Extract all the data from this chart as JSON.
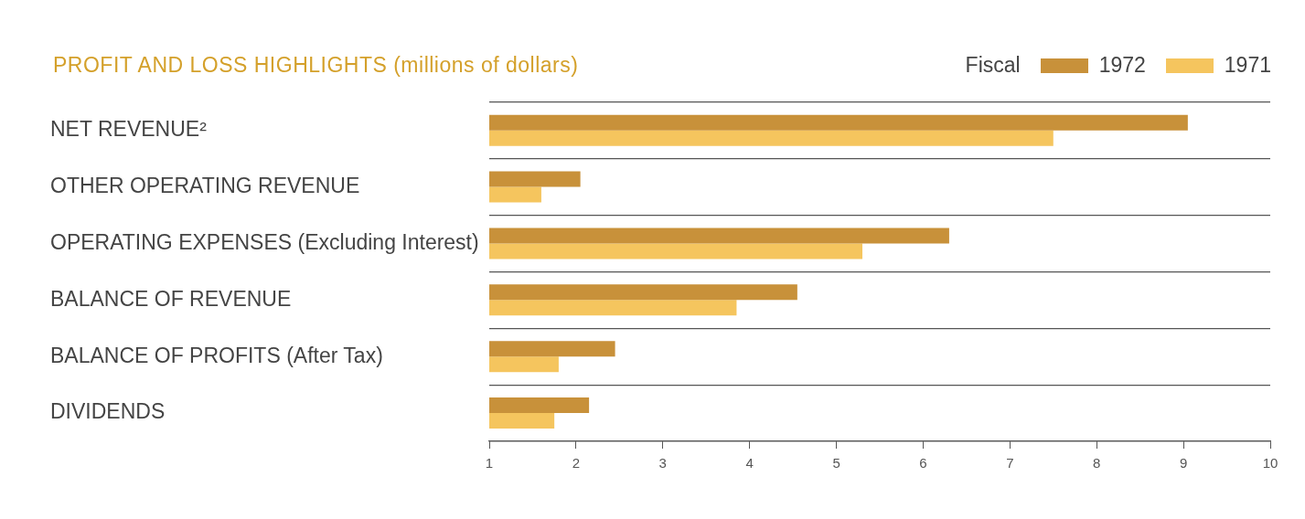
{
  "chart_data": {
    "type": "bar",
    "orientation": "horizontal",
    "title": "PROFIT AND LOSS HIGHLIGHTS (millions of dollars)",
    "legend_title": "Fiscal",
    "legend": "top right",
    "grid": "y",
    "categories": [
      "NET REVENUE²",
      "OTHER OPERATING REVENUE",
      "OPERATING EXPENSES (Excluding Interest)",
      "BALANCE OF REVENUE",
      "BALANCE OF PROFITS (After Tax)",
      "DIVIDENDS"
    ],
    "series": [
      {
        "name": "1972",
        "color": "#c8913a",
        "values": [
          9.05,
          2.05,
          6.3,
          4.55,
          2.45,
          2.15
        ]
      },
      {
        "name": "1971",
        "color": "#f5c55e",
        "values": [
          7.5,
          1.6,
          5.3,
          3.85,
          1.8,
          1.75
        ]
      }
    ],
    "xlim": [
      1,
      10
    ],
    "xticks": [
      1,
      2,
      3,
      4,
      5,
      6,
      7,
      8,
      9,
      10
    ]
  }
}
